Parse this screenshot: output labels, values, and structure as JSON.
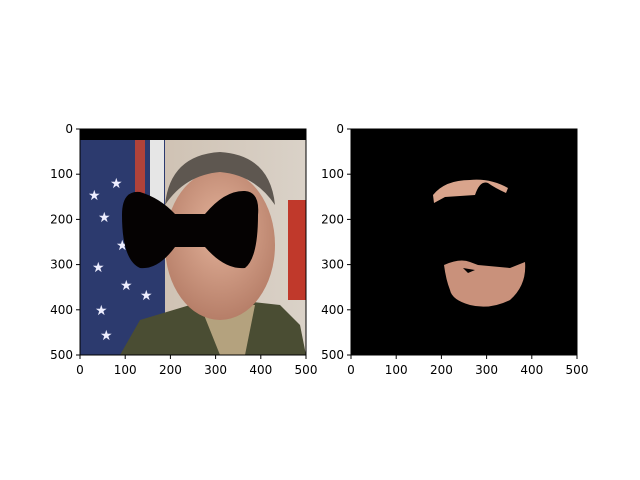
{
  "chart_data": [
    {
      "type": "image",
      "image": "photo of a uniformed officer in front of a US flag; eyes and nose covered by a black bow-tie shaped mask",
      "xlim": [
        0,
        500
      ],
      "ylim": [
        500,
        0
      ],
      "xticks": [
        "0",
        "100",
        "200",
        "300",
        "400",
        "500"
      ],
      "yticks": [
        "0",
        "100",
        "200",
        "300",
        "400",
        "500"
      ]
    },
    {
      "type": "image",
      "image": "segmented skin-region mask: only forehead and lower-face skin pixels kept on black background",
      "xlim": [
        0,
        500
      ],
      "ylim": [
        500,
        0
      ],
      "xticks": [
        "0",
        "100",
        "200",
        "300",
        "400",
        "500"
      ],
      "yticks": [
        "0",
        "100",
        "200",
        "300",
        "400",
        "500"
      ]
    }
  ]
}
